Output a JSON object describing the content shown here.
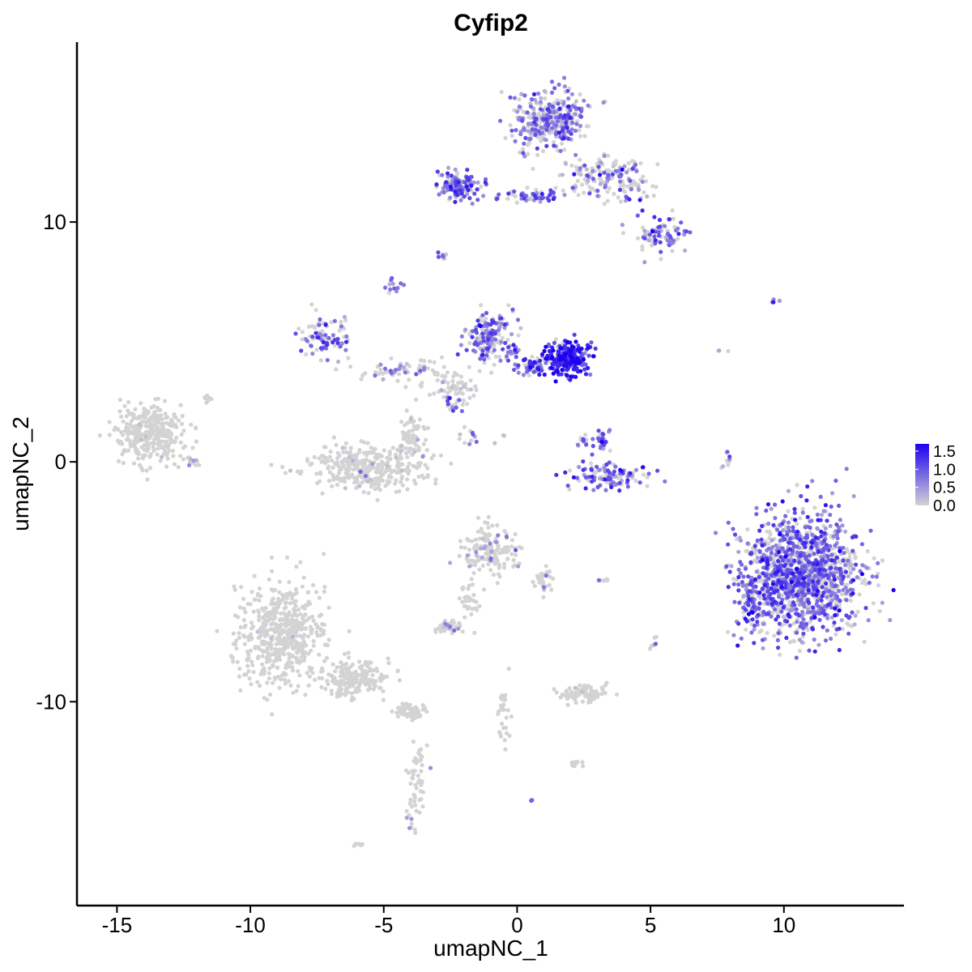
{
  "chart_data": {
    "type": "scatter",
    "title": "Cyfip2",
    "xlabel": "umapNC_1",
    "ylabel": "umapNC_2",
    "xlim": [
      -16.5,
      14.5
    ],
    "ylim": [
      -18.5,
      17.5
    ],
    "x_ticks": [
      -15,
      -10,
      -5,
      0,
      5,
      10
    ],
    "x_tick_labels": [
      "-15",
      "-10",
      "-5",
      "0",
      "5",
      "10"
    ],
    "y_ticks": [
      -10,
      0,
      10
    ],
    "y_tick_labels": [
      "-10",
      "0",
      "10"
    ],
    "grid": false,
    "legend_position": "right",
    "color_scale": {
      "low_color": "#d3d3d3",
      "high_color": "#1c00f0",
      "min": 0,
      "max": 1.7,
      "breaks": [
        1.5,
        1.0,
        0.5,
        0.0
      ],
      "break_labels": [
        "1.5",
        "1.0",
        "0.5",
        "0.0"
      ]
    },
    "clusters": [
      {
        "cx": -13.7,
        "cy": 1.2,
        "rx": 1.3,
        "ry": 1.2,
        "n": 320,
        "expr": 0.0,
        "pos_frac": 0.01
      },
      {
        "cx": -12.1,
        "cy": 0.0,
        "rx": 0.3,
        "ry": 0.2,
        "n": 10,
        "expr": 0.5,
        "pos_frac": 0.5
      },
      {
        "cx": -11.7,
        "cy": 2.6,
        "rx": 0.3,
        "ry": 0.2,
        "n": 8,
        "expr": 0.0,
        "pos_frac": 0.0
      },
      {
        "cx": -5.6,
        "cy": -0.2,
        "rx": 2.2,
        "ry": 0.9,
        "n": 330,
        "expr": 0.0,
        "pos_frac": 0.04
      },
      {
        "cx": -3.9,
        "cy": 0.9,
        "rx": 0.6,
        "ry": 1.2,
        "n": 70,
        "expr": 0.0,
        "pos_frac": 0.03
      },
      {
        "cx": -8.8,
        "cy": -7.2,
        "rx": 1.6,
        "ry": 2.2,
        "n": 520,
        "expr": 0.0,
        "pos_frac": 0.005
      },
      {
        "cx": -6.2,
        "cy": -9.1,
        "rx": 1.4,
        "ry": 0.8,
        "n": 180,
        "expr": 0.0,
        "pos_frac": 0.0
      },
      {
        "cx": -4.0,
        "cy": -10.4,
        "rx": 0.6,
        "ry": 0.3,
        "n": 60,
        "expr": 0.0,
        "pos_frac": 0.0
      },
      {
        "cx": -3.8,
        "cy": -13.5,
        "rx": 0.4,
        "ry": 2.3,
        "n": 60,
        "expr": 0.4,
        "pos_frac": 0.12
      },
      {
        "cx": -5.9,
        "cy": -16.0,
        "rx": 0.2,
        "ry": 0.1,
        "n": 6,
        "expr": 0.0,
        "pos_frac": 0.0
      },
      {
        "cx": -1.0,
        "cy": -3.7,
        "rx": 1.0,
        "ry": 1.0,
        "n": 150,
        "expr": 0.5,
        "pos_frac": 0.1
      },
      {
        "cx": -1.8,
        "cy": -6.0,
        "rx": 0.4,
        "ry": 1.0,
        "n": 30,
        "expr": 0.0,
        "pos_frac": 0.0
      },
      {
        "cx": 1.0,
        "cy": -4.9,
        "rx": 0.4,
        "ry": 0.6,
        "n": 30,
        "expr": 0.5,
        "pos_frac": 0.2
      },
      {
        "cx": -2.5,
        "cy": -6.9,
        "rx": 0.5,
        "ry": 0.3,
        "n": 40,
        "expr": 0.6,
        "pos_frac": 0.2
      },
      {
        "cx": -0.5,
        "cy": -10.5,
        "rx": 0.2,
        "ry": 1.4,
        "n": 30,
        "expr": 0.0,
        "pos_frac": 0.0
      },
      {
        "cx": 2.5,
        "cy": -9.7,
        "rx": 0.9,
        "ry": 0.35,
        "n": 90,
        "expr": 0.0,
        "pos_frac": 0.01
      },
      {
        "cx": 2.2,
        "cy": -12.6,
        "rx": 0.3,
        "ry": 0.2,
        "n": 15,
        "expr": 0.0,
        "pos_frac": 0.0
      },
      {
        "cx": 3.2,
        "cy": -4.9,
        "rx": 0.3,
        "ry": 0.1,
        "n": 6,
        "expr": 0.6,
        "pos_frac": 0.5
      },
      {
        "cx": 0.6,
        "cy": -14.1,
        "rx": 0.1,
        "ry": 0.1,
        "n": 3,
        "expr": 0.8,
        "pos_frac": 1.0
      },
      {
        "cx": 5.1,
        "cy": -7.5,
        "rx": 0.15,
        "ry": 0.3,
        "n": 6,
        "expr": 0.8,
        "pos_frac": 0.6
      },
      {
        "cx": 1.2,
        "cy": 14.2,
        "rx": 1.4,
        "ry": 1.2,
        "n": 340,
        "expr": 0.75,
        "pos_frac": 0.6
      },
      {
        "cx": 3.4,
        "cy": 11.8,
        "rx": 1.6,
        "ry": 0.9,
        "n": 160,
        "expr": 0.7,
        "pos_frac": 0.45
      },
      {
        "cx": 5.4,
        "cy": 9.5,
        "rx": 1.0,
        "ry": 0.8,
        "n": 80,
        "expr": 0.8,
        "pos_frac": 0.5
      },
      {
        "cx": -2.2,
        "cy": 11.5,
        "rx": 0.8,
        "ry": 0.6,
        "n": 140,
        "expr": 0.9,
        "pos_frac": 0.7
      },
      {
        "cx": 0.5,
        "cy": 11.1,
        "rx": 1.3,
        "ry": 0.25,
        "n": 60,
        "expr": 0.8,
        "pos_frac": 0.55
      },
      {
        "cx": -2.8,
        "cy": 8.6,
        "rx": 0.2,
        "ry": 0.15,
        "n": 8,
        "expr": 0.8,
        "pos_frac": 0.8
      },
      {
        "cx": -4.6,
        "cy": 7.3,
        "rx": 0.3,
        "ry": 0.3,
        "n": 12,
        "expr": 0.9,
        "pos_frac": 0.7
      },
      {
        "cx": -7.2,
        "cy": 5.3,
        "rx": 0.9,
        "ry": 0.9,
        "n": 90,
        "expr": 0.9,
        "pos_frac": 0.6
      },
      {
        "cx": -4.5,
        "cy": 3.8,
        "rx": 1.7,
        "ry": 0.4,
        "n": 60,
        "expr": 0.6,
        "pos_frac": 0.3
      },
      {
        "cx": -1.0,
        "cy": 5.2,
        "rx": 0.9,
        "ry": 1.0,
        "n": 180,
        "expr": 0.8,
        "pos_frac": 0.55
      },
      {
        "cx": 1.9,
        "cy": 4.3,
        "rx": 0.8,
        "ry": 0.7,
        "n": 240,
        "expr": 1.3,
        "pos_frac": 0.88
      },
      {
        "cx": 0.5,
        "cy": 4.0,
        "rx": 0.9,
        "ry": 0.4,
        "n": 60,
        "expr": 1.0,
        "pos_frac": 0.7
      },
      {
        "cx": -2.5,
        "cy": 3.2,
        "rx": 1.3,
        "ry": 0.9,
        "n": 70,
        "expr": 0.3,
        "pos_frac": 0.15
      },
      {
        "cx": -2.4,
        "cy": 2.4,
        "rx": 0.3,
        "ry": 0.3,
        "n": 12,
        "expr": 0.9,
        "pos_frac": 0.8
      },
      {
        "cx": -1.6,
        "cy": 1.0,
        "rx": 0.9,
        "ry": 0.4,
        "n": 14,
        "expr": 0.7,
        "pos_frac": 0.5
      },
      {
        "cx": 3.2,
        "cy": 0.9,
        "rx": 0.3,
        "ry": 0.5,
        "n": 30,
        "expr": 1.0,
        "pos_frac": 0.7
      },
      {
        "cx": 2.5,
        "cy": 0.9,
        "rx": 0.3,
        "ry": 0.3,
        "n": 12,
        "expr": 0.9,
        "pos_frac": 0.6
      },
      {
        "cx": 3.3,
        "cy": -0.6,
        "rx": 1.5,
        "ry": 0.5,
        "n": 110,
        "expr": 1.0,
        "pos_frac": 0.75
      },
      {
        "cx": 7.9,
        "cy": 0.0,
        "rx": 0.2,
        "ry": 0.6,
        "n": 10,
        "expr": 0.6,
        "pos_frac": 0.4
      },
      {
        "cx": 7.7,
        "cy": 4.6,
        "rx": 0.2,
        "ry": 0.2,
        "n": 3,
        "expr": 0.5,
        "pos_frac": 0.5
      },
      {
        "cx": 9.7,
        "cy": 6.7,
        "rx": 0.3,
        "ry": 0.1,
        "n": 4,
        "expr": 0.4,
        "pos_frac": 0.4
      },
      {
        "cx": 10.7,
        "cy": -4.7,
        "rx": 2.2,
        "ry": 2.5,
        "n": 1300,
        "expr": 0.85,
        "pos_frac": 0.62
      },
      {
        "cx": 8.8,
        "cy": -5.9,
        "rx": 0.5,
        "ry": 1.2,
        "n": 80,
        "expr": 0.9,
        "pos_frac": 0.7
      }
    ]
  }
}
